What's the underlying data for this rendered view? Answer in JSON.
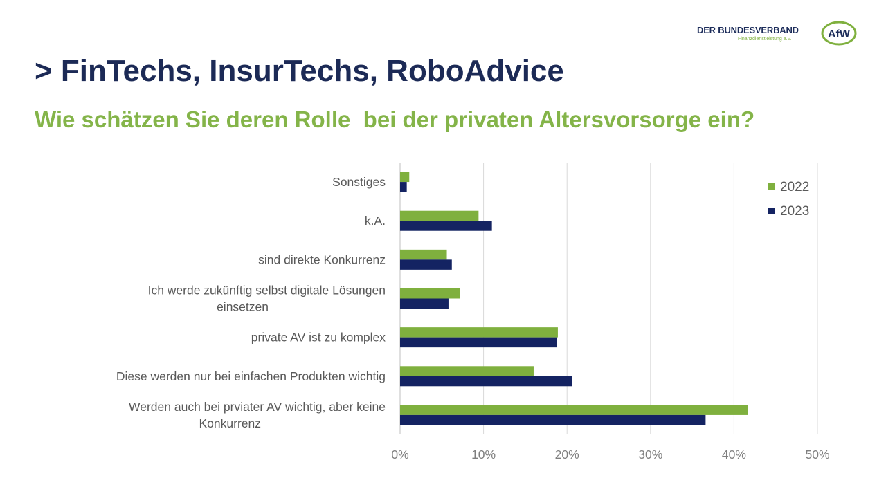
{
  "logo": {
    "text": "DER BUNDESVERBAND",
    "subtext": "Finanzdienstleistung e.V.",
    "badge": "AfW"
  },
  "header": {
    "title": "> FinTechs, InsurTechs, RoboAdvice",
    "subtitle": "Wie schätzen Sie deren Rolle  bei der privaten Altersvorsorge ein?"
  },
  "colors": {
    "title": "#1c2a56",
    "subtitle": "#84b449",
    "series_2022": "#7fb03e",
    "series_2023": "#142362",
    "gridline": "#d9d9d9",
    "axis_text": "#7f7f7f",
    "label_text": "#595959"
  },
  "chart_data": {
    "type": "bar",
    "orientation": "horizontal",
    "categories": [
      "Sonstiges",
      "k.A.",
      "sind direkte Konkurrenz",
      "Ich werde zukünftig selbst digitale Lösungen einsetzen",
      "private AV ist zu komplex",
      "Diese werden nur bei einfachen Produkten wichtig",
      "Werden auch bei prviater AV wichtig, aber keine Konkurrenz"
    ],
    "category_lines": [
      [
        "Sonstiges"
      ],
      [
        "k.A."
      ],
      [
        "sind direkte Konkurrenz"
      ],
      [
        "Ich werde zukünftig selbst digitale Lösungen",
        "einsetzen"
      ],
      [
        "private AV ist zu komplex"
      ],
      [
        "Diese werden nur bei einfachen Produkten wichtig"
      ],
      [
        "Werden auch bei prviater AV wichtig, aber keine",
        "Konkurrenz"
      ]
    ],
    "series": [
      {
        "name": "2022",
        "values": [
          1.1,
          9.4,
          5.6,
          7.2,
          18.9,
          16.0,
          41.7
        ]
      },
      {
        "name": "2023",
        "values": [
          0.8,
          11.0,
          6.2,
          5.8,
          18.8,
          20.6,
          36.6
        ]
      }
    ],
    "xlim": [
      0,
      50
    ],
    "xticks": [
      0,
      10,
      20,
      30,
      40,
      50
    ],
    "xtick_labels": [
      "0%",
      "10%",
      "20%",
      "30%",
      "40%",
      "50%"
    ],
    "grid": true,
    "legend_position": "top-right",
    "title": "",
    "xlabel": "",
    "ylabel": ""
  }
}
